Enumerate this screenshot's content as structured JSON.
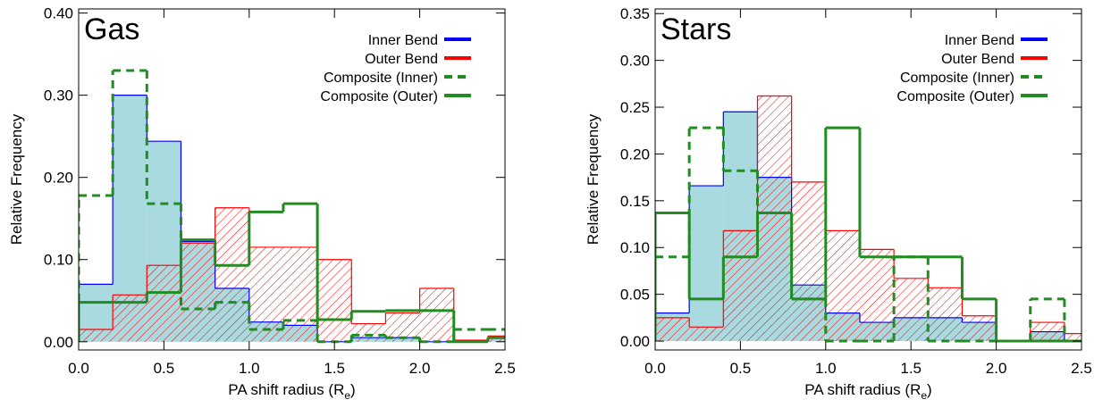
{
  "chart_data": [
    {
      "type": "histogram",
      "title": "Gas",
      "xlabel": [
        "PA shift radius (R",
        "e",
        ")"
      ],
      "ylabel": "Relative Frequency",
      "bins": [
        0,
        0.2,
        0.4,
        0.6,
        0.8,
        1.0,
        1.2,
        1.4,
        1.6,
        1.8,
        2.0,
        2.2,
        2.4,
        2.6
      ],
      "xlim": [
        0,
        2.5
      ],
      "xticks": [
        {
          "value": 0,
          "label": "0.0"
        },
        0.5,
        {
          "value": 1,
          "label": "1.0"
        },
        1.5,
        {
          "value": 2,
          "label": "2.0"
        },
        2.5
      ],
      "ylim": [
        -0.01,
        0.405
      ],
      "yticks": [
        {
          "value": 0,
          "label": "0.00"
        },
        {
          "value": 0.1,
          "label": "0.10"
        },
        {
          "value": 0.2,
          "label": "0.20"
        },
        {
          "value": 0.3,
          "label": "0.30"
        },
        {
          "value": 0.4,
          "label": "0.40"
        }
      ],
      "legend": "upper right",
      "series": [
        {
          "name": "Inner Bend",
          "color": "#0000ff",
          "fill": "#a8dadf",
          "style": "solid",
          "values": [
            0.07,
            0.3,
            0.244,
            0.122,
            0.065,
            0.024,
            0.02,
            0.0,
            0.005,
            0.005,
            0.0,
            0.0,
            0.005
          ]
        },
        {
          "name": "Outer Bend",
          "color": "#ff0000",
          "fill": "hatch",
          "style": "solid",
          "values": [
            0.015,
            0.057,
            0.093,
            0.12,
            0.163,
            0.115,
            0.115,
            0.1,
            0.022,
            0.035,
            0.065,
            0.002,
            0.007
          ]
        },
        {
          "name": "Composite (Inner)",
          "color": "#228b22",
          "style": "dashed",
          "values": [
            0.178,
            0.33,
            0.168,
            0.04,
            0.048,
            0.015,
            0.026,
            0.0,
            0.008,
            0.005,
            0.0,
            0.015,
            0.015
          ]
        },
        {
          "name": "Composite (Outer)",
          "color": "#228b22",
          "style": "solid",
          "values": [
            0.048,
            0.048,
            0.06,
            0.124,
            0.093,
            0.158,
            0.168,
            0.027,
            0.037,
            0.038,
            0.038,
            0.0,
            0.005
          ]
        }
      ]
    },
    {
      "type": "histogram",
      "title": "Stars",
      "xlabel": [
        "PA shift radius (R",
        "e",
        ")"
      ],
      "ylabel": "Relative Frequency",
      "bins": [
        0,
        0.2,
        0.4,
        0.6,
        0.8,
        1.0,
        1.2,
        1.4,
        1.6,
        1.8,
        2.0,
        2.2,
        2.4,
        2.6
      ],
      "xlim": [
        0,
        2.5
      ],
      "xticks": [
        {
          "value": 0,
          "label": "0.0"
        },
        0.5,
        {
          "value": 1,
          "label": "1.0"
        },
        1.5,
        {
          "value": 2,
          "label": "2.0"
        },
        2.5
      ],
      "ylim": [
        -0.0095,
        0.355
      ],
      "yticks": [
        {
          "value": 0,
          "label": "0.00"
        },
        0.05,
        {
          "value": 0.1,
          "label": "0.10"
        },
        0.15,
        {
          "value": 0.2,
          "label": "0.20"
        },
        0.25,
        {
          "value": 0.3,
          "label": "0.30"
        },
        0.35
      ],
      "legend": "upper right",
      "series": [
        {
          "name": "Inner Bend",
          "color": "#0000ff",
          "fill": "#a8dadf",
          "style": "solid",
          "values": [
            0.03,
            0.166,
            0.245,
            0.175,
            0.06,
            0.03,
            0.02,
            0.025,
            0.025,
            0.02,
            0.0,
            0.01,
            0.0
          ]
        },
        {
          "name": "Outer Bend",
          "color": "#ff0000",
          "fill": "hatch",
          "style": "solid",
          "values": [
            0.025,
            0.015,
            0.118,
            0.262,
            0.17,
            0.118,
            0.098,
            0.067,
            0.057,
            0.027,
            0.0,
            0.02,
            0.008
          ]
        },
        {
          "name": "Composite (Inner)",
          "color": "#228b22",
          "style": "dashed",
          "values": [
            0.09,
            0.228,
            0.182,
            0.137,
            0.045,
            0.0,
            0.0,
            0.09,
            0.0,
            0.0,
            0.0,
            0.045,
            0.0
          ]
        },
        {
          "name": "Composite (Outer)",
          "color": "#228b22",
          "style": "solid",
          "values": [
            0.137,
            0.045,
            0.09,
            0.137,
            0.045,
            0.228,
            0.09,
            0.09,
            0.09,
            0.045,
            0.0,
            0.0,
            0.0
          ]
        }
      ]
    }
  ]
}
